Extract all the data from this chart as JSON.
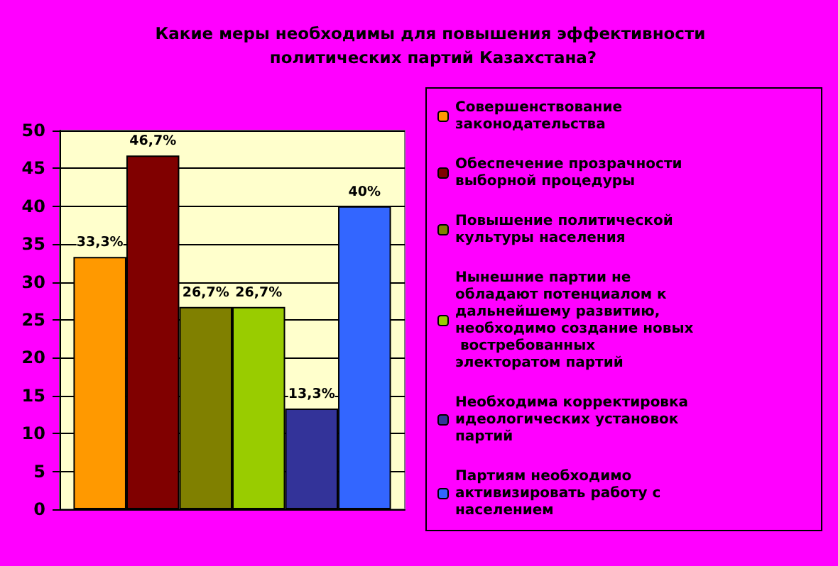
{
  "chart_data": {
    "type": "bar",
    "title": "Какие меры необходимы для повышения эффективности политических партий Казахстана?",
    "categories": [
      null
    ],
    "series": [
      {
        "name": "Совершенствование законодательства",
        "color": "#ff9900",
        "values": [
          33.3
        ],
        "value_labels": [
          "33,3%"
        ]
      },
      {
        "name": "Обеспечение прозрачности выборной процедуры",
        "color": "#800000",
        "values": [
          46.7
        ],
        "value_labels": [
          "46,7%"
        ]
      },
      {
        "name": "Повышение политической культуры населения",
        "color": "#808000",
        "values": [
          26.7
        ],
        "value_labels": [
          "26,7%"
        ]
      },
      {
        "name": "Нынешние партии не обладают потенциалом к дальнейшему развитию, необходимо создание новых востребованных электоратом партий",
        "color": "#99cc00",
        "values": [
          26.7
        ],
        "value_labels": [
          "26,7%"
        ]
      },
      {
        "name": "Необходима корректировка идеологических установок партий",
        "color": "#333399",
        "values": [
          13.3
        ],
        "value_labels": [
          "13,3%"
        ]
      },
      {
        "name": "Партиям необходимо активизировать работу с населением",
        "color": "#3366ff",
        "values": [
          40
        ],
        "value_labels": [
          "40%"
        ]
      }
    ],
    "ylim": [
      0,
      50
    ],
    "yticks": [
      0,
      5,
      10,
      15,
      20,
      25,
      30,
      35,
      40,
      45,
      50
    ],
    "grid": "y",
    "legend": "right"
  }
}
